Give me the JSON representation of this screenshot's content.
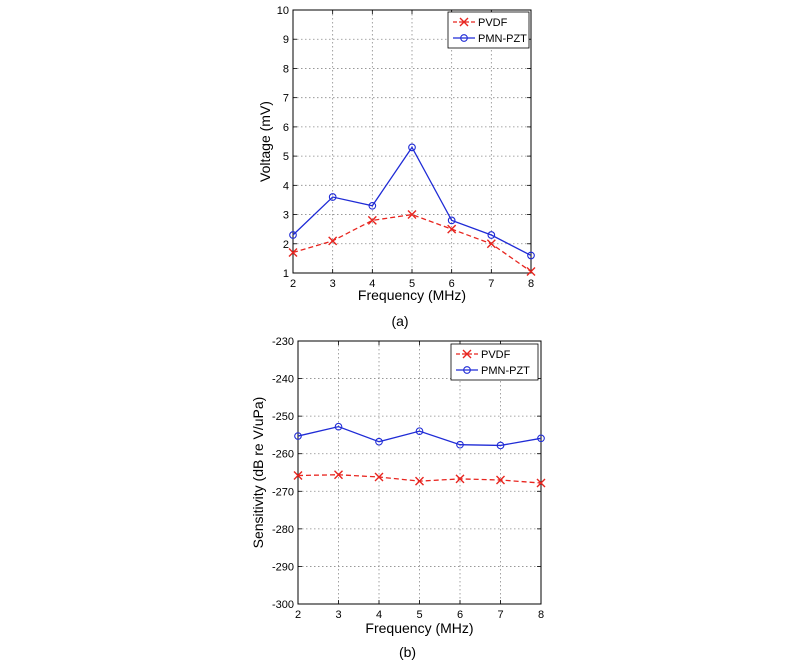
{
  "chart_data": [
    {
      "type": "line",
      "caption": "(a)",
      "xlabel": "Frequency (MHz)",
      "ylabel": "Voltage (mV)",
      "xlim": [
        2,
        8
      ],
      "ylim": [
        1,
        10
      ],
      "xticks": [
        2,
        3,
        4,
        5,
        6,
        7,
        8
      ],
      "yticks": [
        1,
        2,
        3,
        4,
        5,
        6,
        7,
        8,
        9,
        10
      ],
      "grid": true,
      "legend_position": "top-right",
      "x": [
        2,
        3,
        4,
        5,
        6,
        7,
        8
      ],
      "series": [
        {
          "name": "PVDF",
          "values": [
            1.7,
            2.1,
            2.8,
            3.0,
            2.5,
            2.0,
            1.05
          ],
          "color": "#e8251f",
          "marker": "x",
          "dash": true
        },
        {
          "name": "PMN-PZT",
          "values": [
            2.3,
            3.6,
            3.3,
            5.3,
            2.8,
            2.3,
            1.6
          ],
          "color": "#1f2bd6",
          "marker": "o",
          "dash": false
        }
      ]
    },
    {
      "type": "line",
      "caption": "(b)",
      "xlabel": "Frequency (MHz)",
      "ylabel": "Sensitivity (dB re V/uPa)",
      "xlim": [
        2,
        8
      ],
      "ylim": [
        -300,
        -230
      ],
      "xticks": [
        2,
        3,
        4,
        5,
        6,
        7,
        8
      ],
      "yticks": [
        -300,
        -290,
        -280,
        -270,
        -260,
        -250,
        -240,
        -230
      ],
      "grid": true,
      "legend_position": "top-right",
      "x": [
        2,
        3,
        4,
        5,
        6,
        7,
        8
      ],
      "series": [
        {
          "name": "PVDF",
          "values": [
            -265.8,
            -265.6,
            -266.2,
            -267.3,
            -266.7,
            -267.0,
            -267.8
          ],
          "color": "#e8251f",
          "marker": "x",
          "dash": true
        },
        {
          "name": "PMN-PZT",
          "values": [
            -255.3,
            -252.8,
            -256.8,
            -254.0,
            -257.6,
            -257.8,
            -255.9
          ],
          "color": "#1f2bd6",
          "marker": "o",
          "dash": false
        }
      ]
    }
  ]
}
